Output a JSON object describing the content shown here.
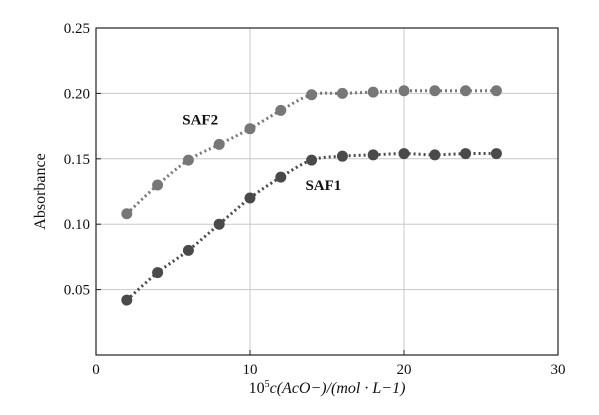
{
  "chart_data": {
    "type": "scatter",
    "xlabel_prefix": "10",
    "xlabel_sup": "5",
    "xlabel_main": "c(AcO−)/(mol · L−1)",
    "ylabel": "Absorbance",
    "xlim": [
      0,
      30
    ],
    "ylim": [
      0,
      0.25
    ],
    "xticks": [
      0,
      10,
      20,
      30
    ],
    "xtick_labels": [
      "0",
      "10",
      "20",
      "30"
    ],
    "yticks": [
      0.05,
      0.1,
      0.15,
      0.2,
      0.25
    ],
    "ytick_labels": [
      "0.05",
      "0.10",
      "0.15",
      "0.20",
      "0.25"
    ],
    "grid": true,
    "series": [
      {
        "name": "SAF2",
        "color": "#777777",
        "x": [
          2,
          4,
          6,
          8,
          10,
          12,
          14,
          16,
          18,
          20,
          22,
          24,
          26
        ],
        "y": [
          0.108,
          0.13,
          0.149,
          0.161,
          0.173,
          0.187,
          0.199,
          0.2,
          0.201,
          0.202,
          0.202,
          0.202,
          0.202
        ]
      },
      {
        "name": "SAF1",
        "color": "#4a4a4a",
        "x": [
          2,
          4,
          6,
          8,
          10,
          12,
          14,
          16,
          18,
          20,
          22,
          24,
          26
        ],
        "y": [
          0.042,
          0.063,
          0.08,
          0.1,
          0.12,
          0.136,
          0.149,
          0.152,
          0.153,
          0.154,
          0.153,
          0.154,
          0.154
        ]
      }
    ]
  }
}
